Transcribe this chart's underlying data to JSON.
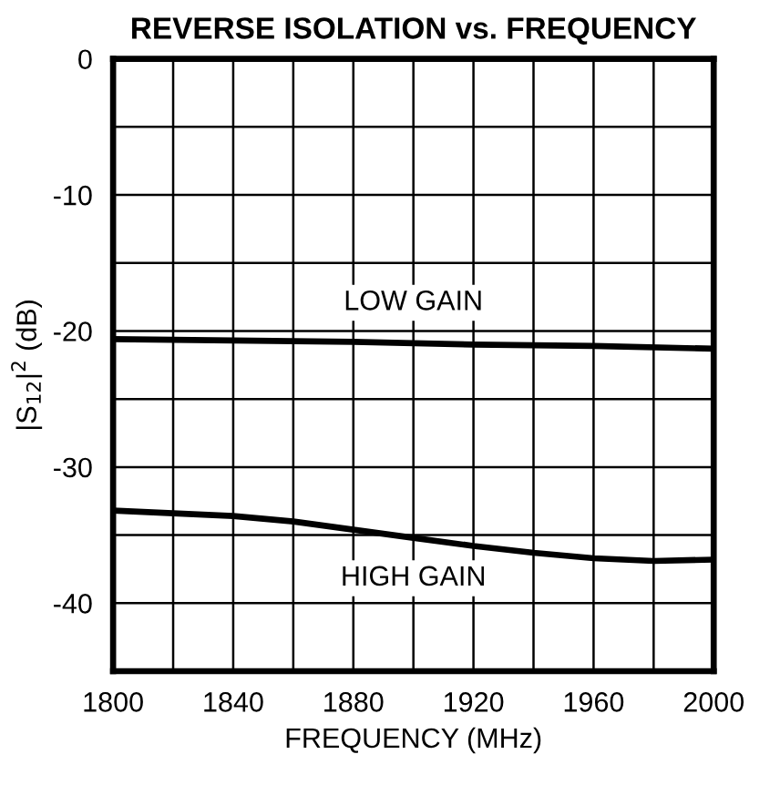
{
  "chart_data": {
    "type": "line",
    "title": "REVERSE ISOLATION vs. FREQUENCY",
    "xlabel": "FREQUENCY (MHz)",
    "ylabel": "|S$_{12}$|$^{2}$ (dB)",
    "series": [
      {
        "name": "LOW GAIN",
        "color": "#000000",
        "x": [
          1800,
          1840,
          1880,
          1920,
          1960,
          2000
        ],
        "values": [
          -20.6,
          -20.7,
          -20.8,
          -21.0,
          -21.1,
          -21.3
        ]
      },
      {
        "name": "HIGH GAIN",
        "color": "#000000",
        "x": [
          1800,
          1820,
          1840,
          1860,
          1880,
          1900,
          1920,
          1940,
          1960,
          1980,
          2000
        ],
        "values": [
          -33.2,
          -33.4,
          -33.6,
          -34.0,
          -34.6,
          -35.2,
          -35.8,
          -36.3,
          -36.7,
          -36.9,
          -36.8
        ]
      }
    ],
    "xlim": [
      1800,
      2000
    ],
    "ylim": [
      -45,
      0
    ],
    "xticks": [
      1800,
      {
        "value": 1820,
        "label": null
      },
      1840,
      {
        "value": 1860,
        "label": null
      },
      1880,
      {
        "value": 1900,
        "label": null
      },
      1920,
      {
        "value": 1940,
        "label": null
      },
      1960,
      {
        "value": 1980,
        "label": null
      },
      2000
    ],
    "yticks": [
      {
        "value": -45,
        "label": null
      },
      {
        "value": -40,
        "label": "-40"
      },
      {
        "value": -35,
        "label": null
      },
      {
        "value": -30,
        "label": "-30"
      },
      {
        "value": -25,
        "label": null
      },
      {
        "value": -20,
        "label": "-20"
      },
      {
        "value": -15,
        "label": null
      },
      {
        "value": -10,
        "label": "-10"
      },
      {
        "value": -5,
        "label": null
      },
      0
    ],
    "grid": true,
    "line_style": "solid",
    "marker": "none"
  }
}
